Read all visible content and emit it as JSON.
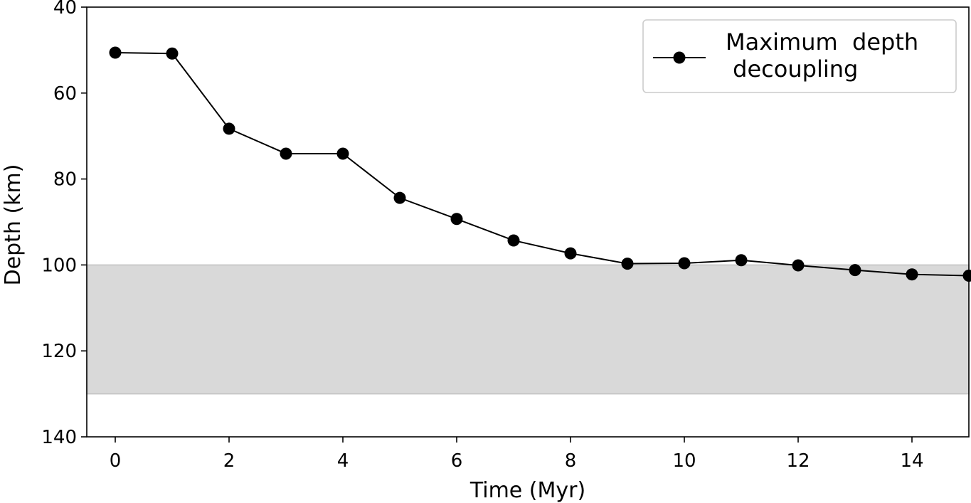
{
  "chart_data": {
    "type": "line",
    "xlabel": "Time (Myr)",
    "ylabel": "Depth (km)",
    "xlim": [
      -0.5,
      15
    ],
    "ylim": [
      40,
      140
    ],
    "y_inverted": true,
    "xticks": [
      0,
      2,
      4,
      6,
      8,
      10,
      12,
      14
    ],
    "yticks": [
      40,
      60,
      80,
      100,
      120,
      140
    ],
    "grid": false,
    "legend_position": "top-right",
    "shaded_band": {
      "y_from": 100,
      "y_to": 130,
      "color": "#d9d9d9",
      "edge_color": "#c4c4c4"
    },
    "series": [
      {
        "name": "Maximum  depth\n decoupling",
        "legend_lines": [
          "Maximum  depth",
          " decoupling"
        ],
        "color": "#000000",
        "marker": "circle",
        "x": [
          0,
          1,
          2,
          3,
          4,
          5,
          6,
          7,
          8,
          9,
          10,
          11,
          12,
          13,
          14,
          15
        ],
        "y": [
          50.6,
          50.8,
          68.3,
          74.1,
          74.1,
          84.4,
          89.3,
          94.3,
          97.3,
          99.7,
          99.6,
          98.9,
          100.1,
          101.2,
          102.2,
          102.5
        ]
      }
    ]
  }
}
